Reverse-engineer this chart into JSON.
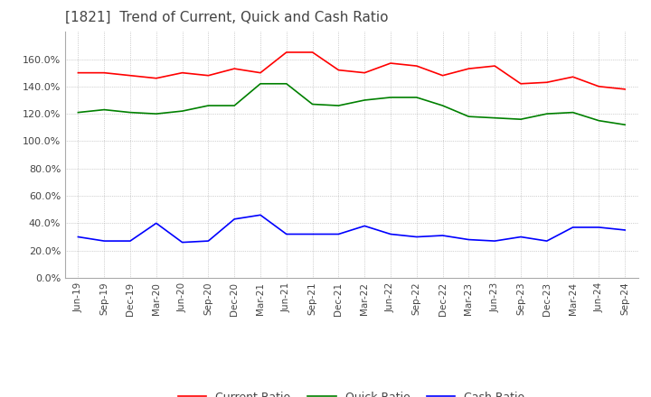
{
  "title": "[1821]  Trend of Current, Quick and Cash Ratio",
  "x_labels": [
    "Jun-19",
    "Sep-19",
    "Dec-19",
    "Mar-20",
    "Jun-20",
    "Sep-20",
    "Dec-20",
    "Mar-21",
    "Jun-21",
    "Sep-21",
    "Dec-21",
    "Mar-22",
    "Jun-22",
    "Sep-22",
    "Dec-22",
    "Mar-23",
    "Jun-23",
    "Sep-23",
    "Dec-23",
    "Mar-24",
    "Jun-24",
    "Sep-24"
  ],
  "current_ratio": [
    1.5,
    1.5,
    1.48,
    1.46,
    1.5,
    1.48,
    1.53,
    1.5,
    1.65,
    1.65,
    1.52,
    1.5,
    1.57,
    1.55,
    1.48,
    1.53,
    1.55,
    1.42,
    1.43,
    1.47,
    1.4,
    1.38
  ],
  "quick_ratio": [
    1.21,
    1.23,
    1.21,
    1.2,
    1.22,
    1.26,
    1.26,
    1.42,
    1.42,
    1.27,
    1.26,
    1.3,
    1.32,
    1.32,
    1.26,
    1.18,
    1.17,
    1.16,
    1.2,
    1.21,
    1.15,
    1.12
  ],
  "cash_ratio": [
    0.3,
    0.27,
    0.27,
    0.4,
    0.26,
    0.27,
    0.43,
    0.46,
    0.32,
    0.32,
    0.32,
    0.38,
    0.32,
    0.3,
    0.31,
    0.28,
    0.27,
    0.3,
    0.27,
    0.37,
    0.37,
    0.35
  ],
  "current_color": "#FF0000",
  "quick_color": "#008000",
  "cash_color": "#0000FF",
  "ylim": [
    0.0,
    1.8
  ],
  "yticks": [
    0.0,
    0.2,
    0.4,
    0.6,
    0.8,
    1.0,
    1.2,
    1.4,
    1.6
  ],
  "background_color": "#FFFFFF",
  "grid_color": "#AAAAAA",
  "title_fontsize": 11,
  "legend_labels": [
    "Current Ratio",
    "Quick Ratio",
    "Cash Ratio"
  ]
}
